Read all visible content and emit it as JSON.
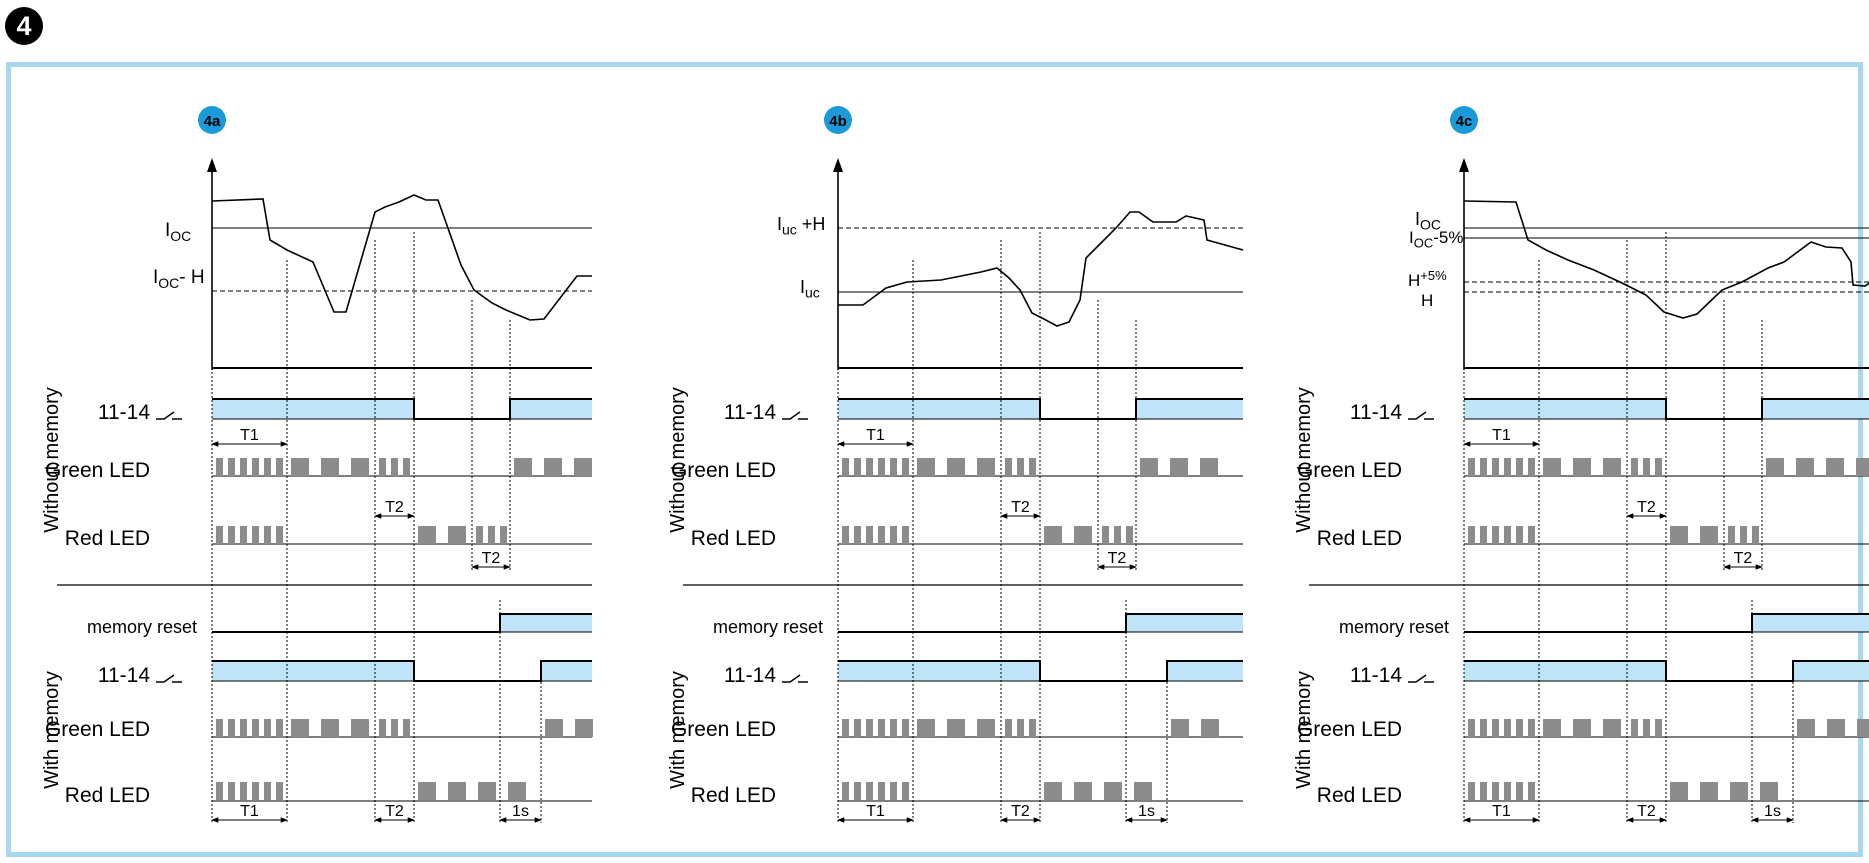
{
  "figure_number": "4",
  "panels": [
    {
      "badge": "4a",
      "thresholds": [
        "I",
        "OC",
        "",
        "I",
        "OC",
        "- H"
      ],
      "without_memory": {
        "section_label": "Without memory",
        "relay_label": "11-14",
        "green_led_label": "Green LED",
        "red_led_label": "Red LED",
        "t1": "T1",
        "t2_green": "T2",
        "t2_red": "T2"
      },
      "with_memory": {
        "section_label": "With memory",
        "memory_reset_label": "memory reset",
        "relay_label": "11-14",
        "green_led_label": "Green LED",
        "red_led_label": "Red LED",
        "t1": "T1",
        "t2": "T2",
        "one_s": "1s"
      }
    },
    {
      "badge": "4b",
      "thresholds": [
        "I",
        "uc",
        " +H",
        "I",
        "uc",
        ""
      ],
      "without_memory": {
        "section_label": "Without memory",
        "relay_label": "11-14",
        "green_led_label": "Green LED",
        "red_led_label": "Red LED",
        "t1": "T1",
        "t2_green": "T2",
        "t2_red": "T2"
      },
      "with_memory": {
        "section_label": "With memory",
        "memory_reset_label": "memory reset",
        "relay_label": "11-14",
        "green_led_label": "Green LED",
        "red_led_label": "Red LED",
        "t1": "T1",
        "t2": "T2",
        "one_s": "1s"
      }
    },
    {
      "badge": "4c",
      "thresholds": [
        "I",
        "OC",
        "",
        "I",
        "OC",
        "-5%",
        "H",
        "+5%",
        "H"
      ],
      "without_memory": {
        "section_label": "Without memory",
        "relay_label": "11-14",
        "green_led_label": "Green LED",
        "red_led_label": "Red LED",
        "t1": "T1",
        "t2_green": "T2",
        "t2_red": "T2"
      },
      "with_memory": {
        "section_label": "With memory",
        "memory_reset_label": "memory reset",
        "relay_label": "11-14",
        "green_led_label": "Green LED",
        "red_led_label": "Red LED",
        "t1": "T1",
        "t2": "T2",
        "one_s": "1s"
      }
    }
  ],
  "colors": {
    "frame": "#a8d8f0",
    "badge": "#1a9ad8",
    "relay_fill": "#bfe4f8",
    "led_block": "#8c8c8c",
    "line": "#000000"
  }
}
